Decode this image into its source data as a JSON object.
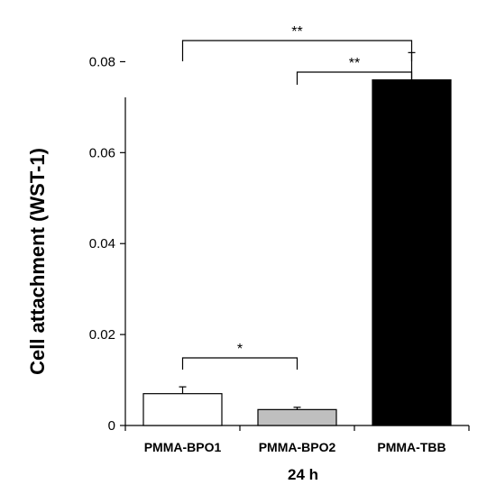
{
  "chart_data": {
    "type": "bar",
    "categories": [
      "PMMA-BPO1",
      "PMMA-BPO2",
      "PMMA-TBB"
    ],
    "values": [
      0.007,
      0.0035,
      0.076
    ],
    "errors": [
      0.0015,
      0.0005,
      0.006
    ],
    "bar_colors": [
      "#ffffff",
      "#bfbfbf",
      "#000000"
    ],
    "xlabel": "24 h",
    "ylabel": "Cell attachment (WST-1)",
    "ylim": [
      0,
      0.09
    ],
    "yticks": [
      0,
      0.02,
      0.04,
      0.06,
      0.08
    ],
    "ytick_labels": [
      "0",
      "0.02",
      "0.04",
      "0.06",
      "0.08"
    ],
    "grid": false,
    "significance": [
      {
        "from": "PMMA-BPO1",
        "to": "PMMA-TBB",
        "label": "**"
      },
      {
        "from": "PMMA-BPO2",
        "to": "PMMA-TBB",
        "label": "**"
      },
      {
        "from": "PMMA-BPO1",
        "to": "PMMA-BPO2",
        "label": "*"
      }
    ]
  }
}
